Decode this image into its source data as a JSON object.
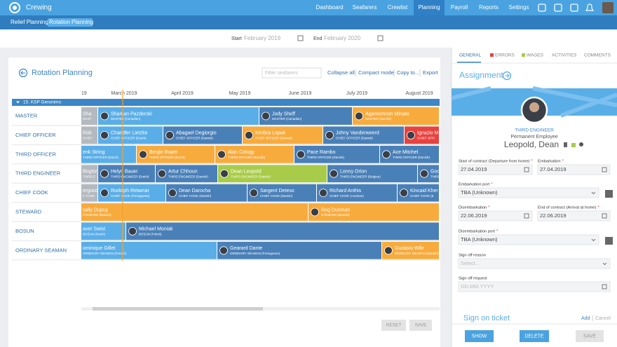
{
  "nav": {
    "brand": "Crewing",
    "items": [
      "Dashboard",
      "Seafarers",
      "Crewlist",
      "Planning",
      "Payroll",
      "Reports",
      "Settings"
    ],
    "active": 3
  },
  "subnav": {
    "items": [
      "Relief Planning",
      "Rotation Planning"
    ],
    "active": 1
  },
  "period": {
    "start_label": "Start",
    "start": "February 2019",
    "end_label": "End",
    "end": "February 2020"
  },
  "planner": {
    "title": "Rotation Planning",
    "filter_placeholder": "Filter seafarers",
    "actions": [
      "Collapse all",
      "Compact mode",
      "Copy to...",
      "Export"
    ],
    "months": [
      "19",
      "March 2019",
      "April 2019",
      "May 2019",
      "June 2019",
      "July 2019",
      "August 2019"
    ],
    "vessel": "15. KSP Geronimo",
    "rows": [
      {
        "rank": "MASTER",
        "assignments": [
          {
            "name": "Sha",
            "role": "MAST",
            "color": "#b4b9bf"
          },
          {
            "name": "Shaman Pazderski",
            "role": "MASTER (Canadian)",
            "color": "#5aaee8"
          },
          {
            "name": "Jody Sheff",
            "role": "MASTER (Canadian)",
            "color": "#4a80b8"
          },
          {
            "name": "Agamemnon Minato",
            "role": "MASTER (Danish)",
            "color": "#f8ab3d"
          }
        ]
      },
      {
        "rank": "CHIEF OFFICER",
        "assignments": [
          {
            "name": "Rob",
            "role": "CHIEF",
            "color": "#b4b9bf"
          },
          {
            "name": "Chandler Lietzke",
            "role": "CHIEF OFFICER (Dutch)",
            "color": "#5aaee8"
          },
          {
            "name": "Abagael Degiorgio",
            "role": "CHIEF OFFICER (Danish)",
            "color": "#4a80b8"
          },
          {
            "name": "Kimbra Lepak",
            "role": "CHIEF OFFICER (Danish)",
            "color": "#f8ab3d"
          },
          {
            "name": "Johny Vanderweerd",
            "role": "CHIEF OFFICER (Danish)",
            "color": "#4a80b8"
          },
          {
            "name": "Ignazio M",
            "role": "CHIEF OFFI",
            "color": "#e8423f"
          }
        ]
      },
      {
        "rank": "THIRD OFFICER",
        "assignments": [
          {
            "name": "enk String",
            "role": "THIRD OFFICER (Dutch)",
            "color": "#5aaee8"
          },
          {
            "name": "Benjie Roper",
            "role": "THIRD OFFICER (Dutch)",
            "color": "#f8ab3d"
          },
          {
            "name": "Alan Cology",
            "role": "THIRD OFFICER (Danish)",
            "color": "#f8ab3d"
          },
          {
            "name": "Pace Rambo",
            "role": "THIRD OFFICER (Danish)",
            "color": "#4a80b8"
          },
          {
            "name": "Ace Mitchel",
            "role": "THIRD OFFICER (Danish)",
            "color": "#4a80b8"
          }
        ]
      },
      {
        "rank": "THIRD ENGINEER",
        "assignments": [
          {
            "name": "llington",
            "role": "THIRD E",
            "color": "#b4b9bf"
          },
          {
            "name": "Helyn Bauer",
            "role": "THIRD ENGINEER (Dutch)",
            "color": "#4a80b8"
          },
          {
            "name": "Artur Chhoun",
            "role": "THIRD ENGINEER (Danish)",
            "color": "#4a80b8"
          },
          {
            "name": "Dean Leopold",
            "role": "THIRD ENGINEER (Danish)",
            "color": "#a8cc4a"
          },
          {
            "name": "Lonny Orion",
            "role": "THIRD ENGINEER (Belgian)",
            "color": "#4a80b8"
          },
          {
            "name": "Godfree",
            "role": "THIRD ENGINEE",
            "color": "#4a80b8"
          }
        ]
      },
      {
        "rank": "CHIEF COOK",
        "assignments": [
          {
            "name": "ergood",
            "role": "F COOK",
            "color": "#b4b9bf"
          },
          {
            "name": "Rodolph Retamar",
            "role": "CHIEF COOK (Portuguese)",
            "color": "#5aaee8"
          },
          {
            "name": "Dean Darocha",
            "role": "CHIEF COOK (Danish)",
            "color": "#4a80b8"
          },
          {
            "name": "Sargent Deteso",
            "role": "CHIEF COOK (Danish)",
            "color": "#4a80b8"
          },
          {
            "name": "Richard Anthis",
            "role": "CHIEF COOK (Austrian)",
            "color": "#4a80b8"
          },
          {
            "name": "Kincaid Kher",
            "role": "CHIEF COOK (E",
            "color": "#4a80b8"
          }
        ]
      },
      {
        "rank": "STEWARD",
        "assignments": [
          {
            "name": "sally Dupuy",
            "role": "STEWARD (Danish)",
            "color": "#f8ab3d"
          },
          {
            "name": "Rog Dunman",
            "role": "STEWARD (Danish)",
            "color": "#f8ab3d"
          }
        ]
      },
      {
        "rank": "BOSUN",
        "assignments": [
          {
            "name": "aver Swist",
            "role": "BOSUN (Dutch)",
            "color": "#5aaee8"
          },
          {
            "name": "Michael Moniak",
            "role": "BOSUN (Polish)",
            "color": "#4a80b8"
          }
        ]
      },
      {
        "rank": "ORDINARY SEAMAN",
        "assignments": [
          {
            "name": "ominique Gillet",
            "role": "ORDINARY SEAMAN (French)",
            "color": "#5aaee8"
          },
          {
            "name": "Gearard Dante",
            "role": "ORDINARY SEAMAN (Portuguese)",
            "color": "#4a80b8"
          },
          {
            "name": "Gustavo Wile",
            "role": "ORDINARY SEAMAN (Danish)",
            "color": "#f8ab3d"
          }
        ]
      }
    ],
    "buttons": [
      "RESET",
      "SAVE"
    ]
  },
  "detail": {
    "tabs": [
      "GENERAL",
      "ERRORS",
      "WAGES",
      "ACTIVITIES",
      "COMMENTS"
    ],
    "heading": "Assignment",
    "rank": "THIRD ENGINEER",
    "employment": "Permanent Employee",
    "name": "Leopold, Dean",
    "required_mark": "*",
    "fields": [
      {
        "label": "Start of contract (Departure from home)",
        "value": "27.04.2019",
        "required": true
      },
      {
        "label": "Embarkation",
        "value": "27.04.2019",
        "required": true
      },
      {
        "label": "Embarkation port",
        "value": "TBA (Unknown)",
        "required": true
      },
      {
        "label": "Disembarkation",
        "value": "22.06.2019",
        "required": true
      },
      {
        "label": "End of contract (Arrival at home)",
        "value": "22.06.2019",
        "required": true
      },
      {
        "label": "Disembarkation port",
        "value": "TBA (Unknown)",
        "required": true
      },
      {
        "label": "Sign off reason",
        "value": "Select...",
        "required": false
      },
      {
        "label": "Sign off request",
        "value": "DD.MM.YYYY",
        "required": false
      }
    ],
    "section": "Sign on ticket",
    "section_actions": [
      "Add",
      "Cancel"
    ],
    "buttons": [
      "SHOW",
      "DELETE",
      "SAVE"
    ]
  }
}
